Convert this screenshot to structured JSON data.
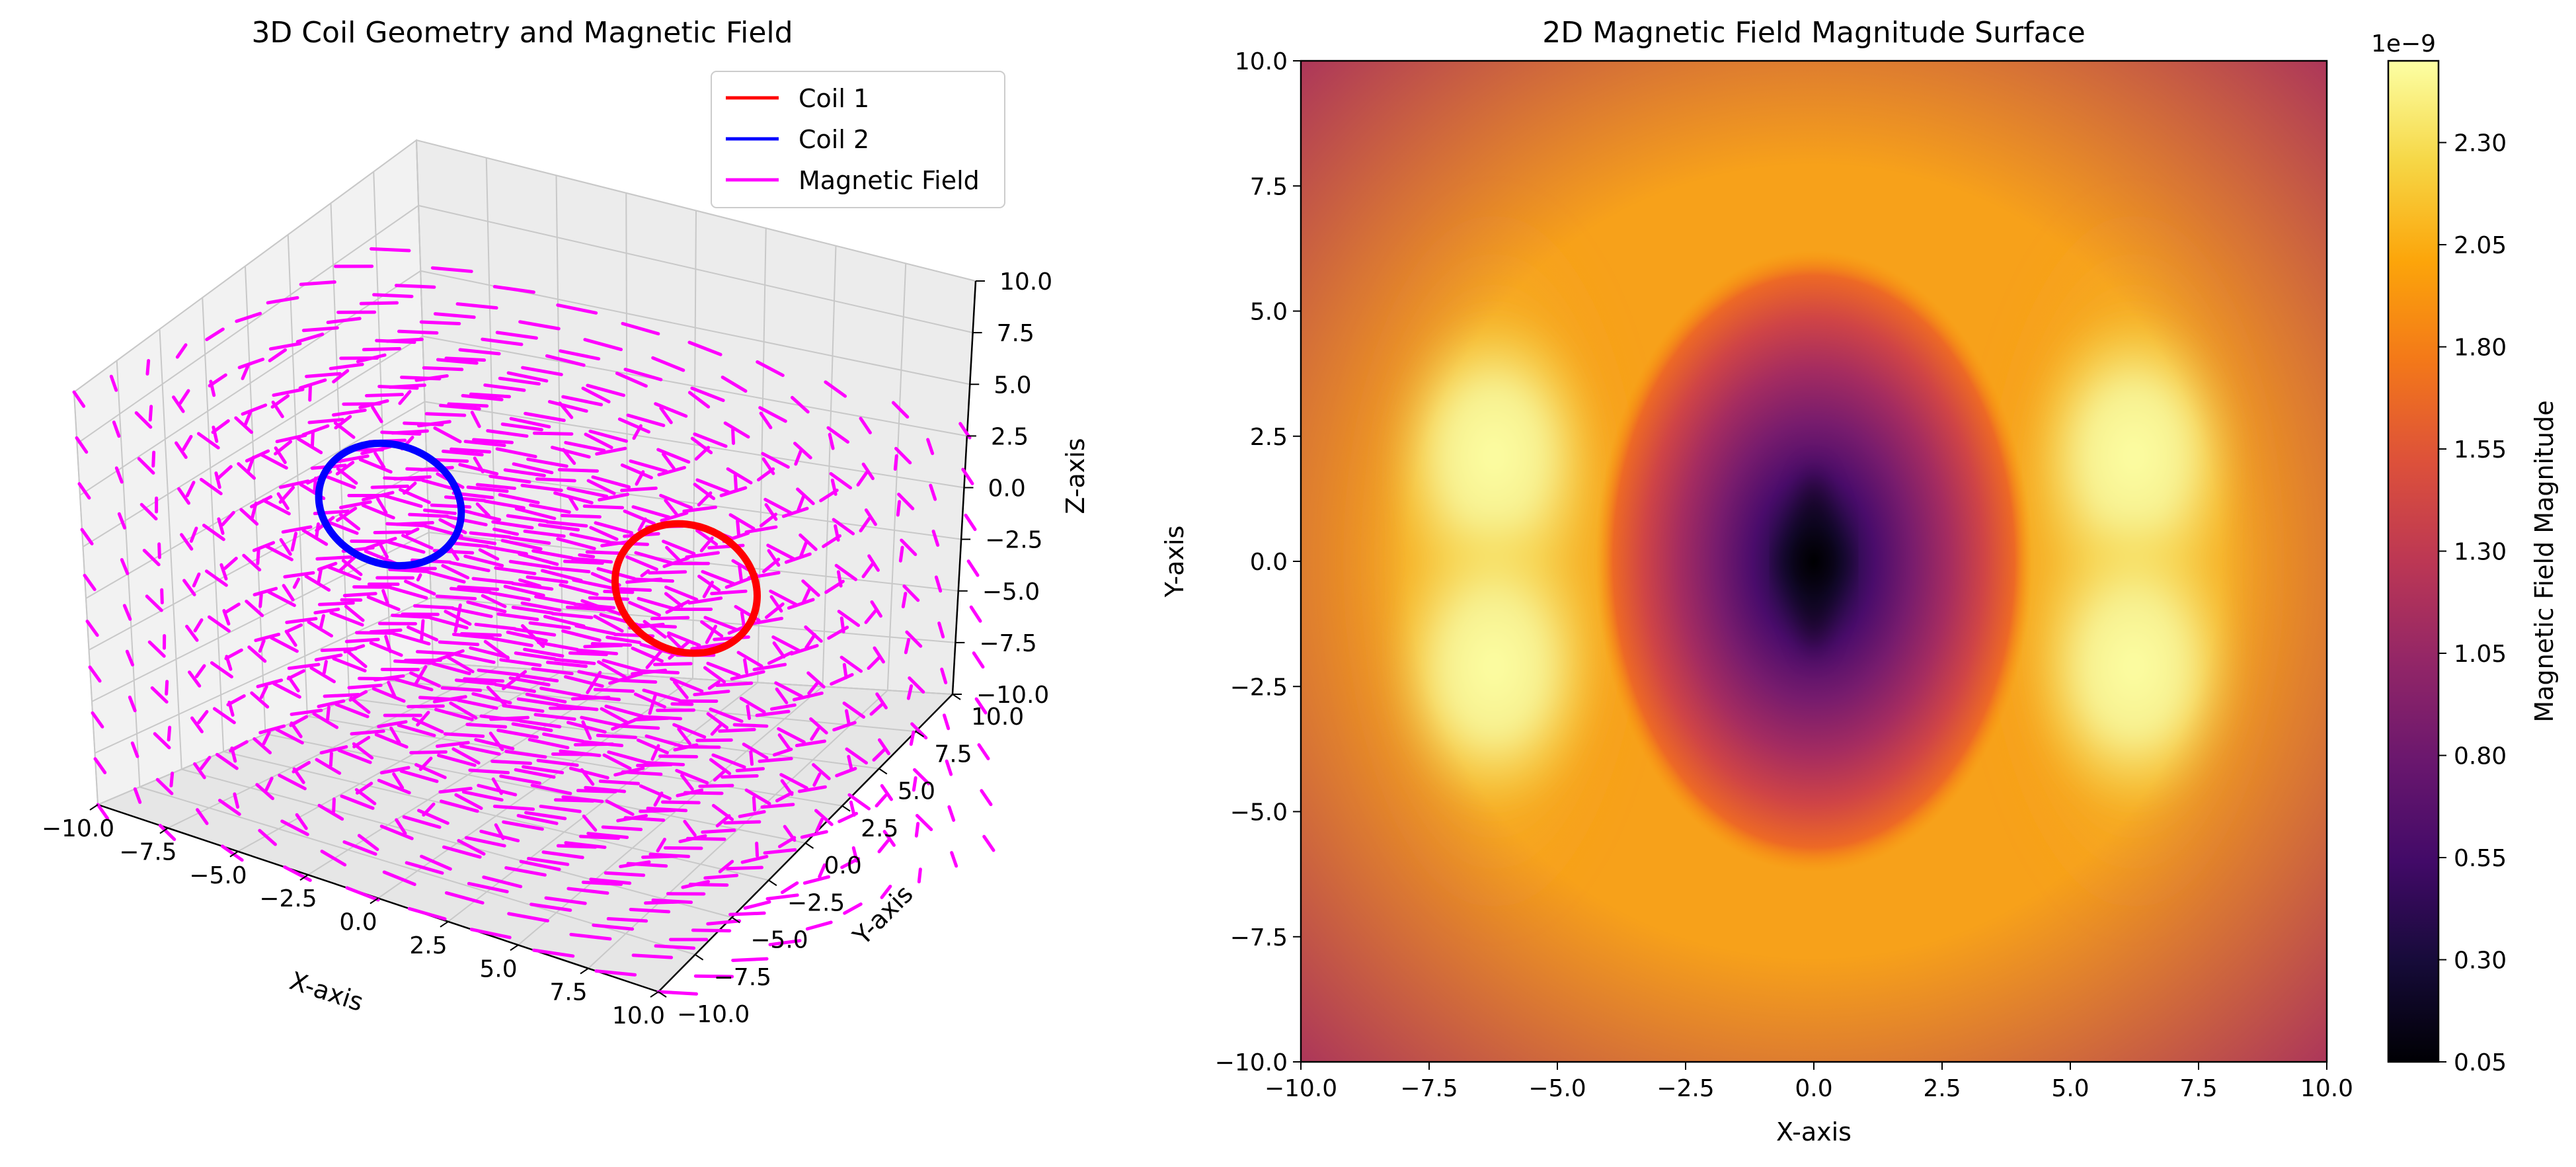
{
  "colors": {
    "coil1": "#ff0000",
    "coil2": "#0000ff",
    "field": "#ff00ff",
    "pane_face": "#f2f2f2",
    "pane_grid": "#c8c8c8"
  },
  "chart_data": [
    {
      "type": "line3d",
      "title": "3D Coil Geometry and Magnetic Field",
      "xlabel": "X-axis",
      "ylabel": "Y-axis",
      "zlabel": "Z-axis",
      "xlim": [
        -10,
        10
      ],
      "ylim": [
        -10,
        10
      ],
      "zlim": [
        -10,
        10
      ],
      "x_ticks": [
        "−10.0",
        "−7.5",
        "−5.0",
        "−2.5",
        "0.0",
        "2.5",
        "5.0",
        "7.5",
        "10.0"
      ],
      "y_ticks": [
        "−10.0",
        "−7.5",
        "−5.0",
        "−2.5",
        "0.0",
        "2.5",
        "5.0",
        "7.5",
        "10.0"
      ],
      "z_ticks": [
        "−10.0",
        "−7.5",
        "−5.0",
        "−2.5",
        "0.0",
        "2.5",
        "5.0",
        "7.5",
        "10.0"
      ],
      "grid": true,
      "legend_position": "upper right",
      "series": [
        {
          "name": "Coil 1",
          "kind": "circle",
          "center": [
            5,
            0,
            0
          ],
          "radius": 3,
          "normal_axis": "x",
          "color": "#ff0000"
        },
        {
          "name": "Coil 2",
          "kind": "circle",
          "center": [
            -5,
            0,
            0
          ],
          "radius": 3,
          "normal_axis": "x",
          "color": "#0000ff"
        },
        {
          "name": "Magnetic Field",
          "kind": "quiver",
          "grid_range": [
            -10,
            10
          ],
          "grid_points": 10,
          "color": "#ff00ff"
        }
      ]
    },
    {
      "type": "heatmap",
      "title": "2D Magnetic Field Magnitude Surface",
      "xlabel": "X-axis",
      "ylabel": "Y-axis",
      "xlim": [
        -10,
        10
      ],
      "ylim": [
        -10,
        10
      ],
      "x_ticks": [
        "−10.0",
        "−7.5",
        "−5.0",
        "−2.5",
        "0.0",
        "2.5",
        "5.0",
        "7.5",
        "10.0"
      ],
      "y_ticks": [
        "−10.0",
        "−7.5",
        "−5.0",
        "−2.5",
        "0.0",
        "2.5",
        "5.0",
        "7.5",
        "10.0"
      ],
      "colormap": "inferno",
      "colorbar": {
        "label": "Magnetic Field Magnitude",
        "multiplier": "1e−9",
        "range": [
          0.05,
          2.5
        ],
        "ticks": [
          "0.05",
          "0.30",
          "0.55",
          "0.80",
          "1.05",
          "1.30",
          "1.55",
          "1.80",
          "2.05",
          "2.30"
        ]
      },
      "features": {
        "minimum_at": [
          0,
          0
        ],
        "minimum_value": 0.05,
        "maxima_at": [
          [
            -6.5,
            2.5
          ],
          [
            -6.5,
            -2.5
          ],
          [
            6.5,
            2.5
          ],
          [
            6.5,
            -2.5
          ]
        ],
        "maximum_value": 2.5
      }
    }
  ]
}
